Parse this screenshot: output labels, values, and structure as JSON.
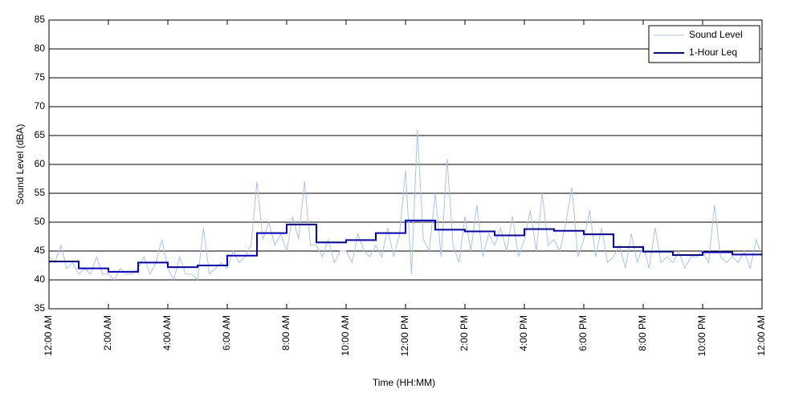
{
  "chart_data": {
    "type": "line",
    "xlabel": "Time (HH:MM)",
    "ylabel": "Sound Level (dBA)",
    "xlim": [
      0,
      24
    ],
    "ylim": [
      35,
      85
    ],
    "xticks": [
      {
        "value": 0,
        "label": "12:00 AM"
      },
      {
        "value": 2,
        "label": "2:00 AM"
      },
      {
        "value": 4,
        "label": "4:00 AM"
      },
      {
        "value": 6,
        "label": "6:00 AM"
      },
      {
        "value": 8,
        "label": "8:00 AM"
      },
      {
        "value": 10,
        "label": "10:00 AM"
      },
      {
        "value": 12,
        "label": "12:00 PM"
      },
      {
        "value": 14,
        "label": "2:00 PM"
      },
      {
        "value": 16,
        "label": "4:00 PM"
      },
      {
        "value": 18,
        "label": "6:00 PM"
      },
      {
        "value": 20,
        "label": "8:00 PM"
      },
      {
        "value": 22,
        "label": "10:00 PM"
      },
      {
        "value": 24,
        "label": "12:00 AM"
      }
    ],
    "yticks": [
      35,
      40,
      45,
      50,
      55,
      60,
      65,
      70,
      75,
      80,
      85
    ],
    "grid": "y",
    "legend": "upper right",
    "series": [
      {
        "name": "Sound Level",
        "color": "#a9c4f0",
        "style": "line",
        "x": [
          0,
          0.2,
          0.4,
          0.6,
          0.8,
          1,
          1.2,
          1.4,
          1.6,
          1.8,
          2,
          2.2,
          2.4,
          2.6,
          2.8,
          3,
          3.2,
          3.4,
          3.6,
          3.8,
          4,
          4.2,
          4.4,
          4.6,
          4.8,
          5,
          5.2,
          5.4,
          5.6,
          5.8,
          6,
          6.2,
          6.4,
          6.6,
          6.8,
          7,
          7.2,
          7.4,
          7.6,
          7.8,
          8,
          8.2,
          8.4,
          8.6,
          8.8,
          9,
          9.2,
          9.4,
          9.6,
          9.8,
          10,
          10.2,
          10.4,
          10.6,
          10.8,
          11,
          11.2,
          11.4,
          11.6,
          11.8,
          12,
          12.2,
          12.4,
          12.6,
          12.8,
          13,
          13.2,
          13.4,
          13.6,
          13.8,
          14,
          14.2,
          14.4,
          14.6,
          14.8,
          15,
          15.2,
          15.4,
          15.6,
          15.8,
          16,
          16.2,
          16.4,
          16.6,
          16.8,
          17,
          17.2,
          17.4,
          17.6,
          17.8,
          18,
          18.2,
          18.4,
          18.6,
          18.8,
          19,
          19.2,
          19.4,
          19.6,
          19.8,
          20,
          20.2,
          20.4,
          20.6,
          20.8,
          21,
          21.2,
          21.4,
          21.6,
          21.8,
          22,
          22.2,
          22.4,
          22.6,
          22.8,
          23,
          23.2,
          23.4,
          23.6,
          23.8,
          24
        ],
        "values": [
          44,
          43,
          46,
          42,
          43,
          41,
          42,
          41,
          44,
          41,
          41,
          40,
          42,
          41,
          41,
          42,
          44,
          41,
          43,
          47,
          42,
          40,
          44,
          41,
          41,
          40,
          49,
          41,
          42,
          43,
          42,
          45,
          43,
          44,
          46,
          57,
          47,
          50,
          46,
          48,
          45,
          51,
          47,
          57,
          46,
          46,
          44,
          47,
          43,
          45,
          45,
          43,
          48,
          45,
          44,
          46,
          44,
          49,
          44,
          48,
          59,
          41,
          66,
          47,
          45,
          55,
          44,
          61,
          46,
          43,
          51,
          45,
          53,
          44,
          48,
          46,
          49,
          45,
          51,
          44,
          47,
          52,
          45,
          55,
          46,
          47,
          45,
          50,
          56,
          44,
          47,
          52,
          44,
          49,
          43,
          44,
          46,
          42,
          48,
          43,
          46,
          42,
          49,
          43,
          44,
          43,
          45,
          42,
          44,
          44,
          45,
          43,
          53,
          44,
          43,
          44,
          43,
          45,
          42,
          47,
          44
        ]
      },
      {
        "name": "1-Hour Leq",
        "color": "#0000cc",
        "style": "step",
        "x": [
          0,
          1,
          2,
          3,
          4,
          5,
          6,
          7,
          8,
          9,
          10,
          11,
          12,
          13,
          14,
          15,
          16,
          17,
          18,
          19,
          20,
          21,
          22,
          23
        ],
        "values": [
          43.2,
          42.0,
          41.4,
          43.0,
          42.2,
          42.5,
          44.2,
          48.1,
          49.6,
          46.5,
          46.9,
          48.1,
          50.3,
          48.7,
          48.4,
          47.7,
          48.8,
          48.5,
          47.9,
          45.7,
          44.9,
          44.3,
          44.8,
          44.4
        ]
      }
    ]
  }
}
